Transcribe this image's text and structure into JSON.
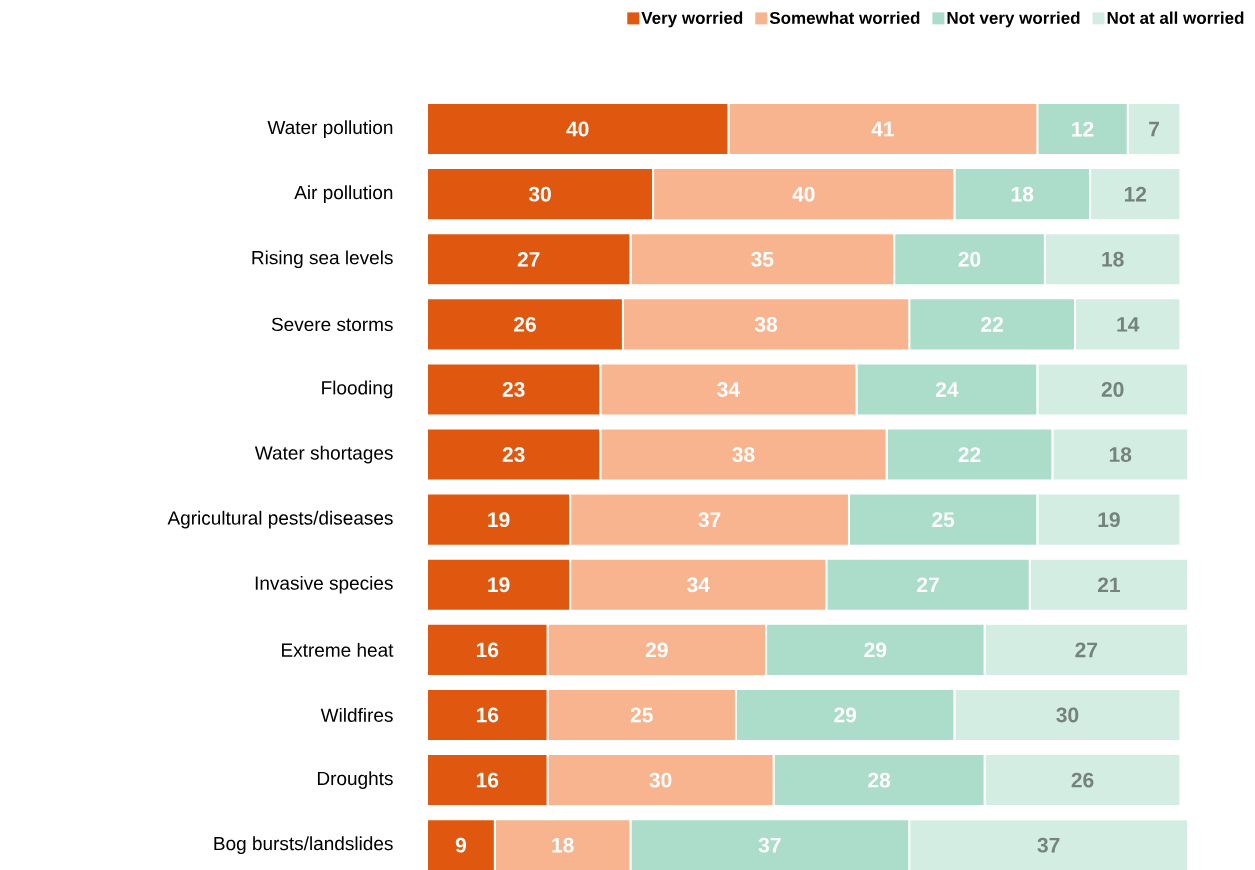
{
  "chart_data": {
    "type": "bar",
    "orientation": "horizontal",
    "stacked": true,
    "data_labels": true,
    "legend": "top right",
    "categories": [
      "Water pollution",
      "Air pollution",
      "Rising sea levels",
      "Severe storms",
      "Flooding",
      "Water shortages",
      "Agricultural pests/diseases",
      "Invasive species",
      "Extreme heat",
      "Wildfires",
      "Droughts",
      "Bog bursts/landslides"
    ],
    "series": [
      {
        "name": "Very worried",
        "color": "#e0580f",
        "values": [
          40,
          30,
          27,
          26,
          23,
          23,
          19,
          19,
          16,
          16,
          16,
          9
        ]
      },
      {
        "name": "Somewhat worried",
        "color": "#f8b48f",
        "values": [
          41,
          40,
          35,
          38,
          34,
          38,
          37,
          34,
          29,
          25,
          30,
          18
        ]
      },
      {
        "name": "Not very worried",
        "color": "#acdcca",
        "values": [
          12,
          18,
          20,
          22,
          24,
          22,
          25,
          27,
          29,
          29,
          28,
          37
        ]
      },
      {
        "name": "Not at all worried",
        "color": "#d4ede3",
        "values": [
          7,
          12,
          18,
          14,
          20,
          18,
          19,
          21,
          27,
          30,
          26,
          37
        ]
      }
    ]
  }
}
